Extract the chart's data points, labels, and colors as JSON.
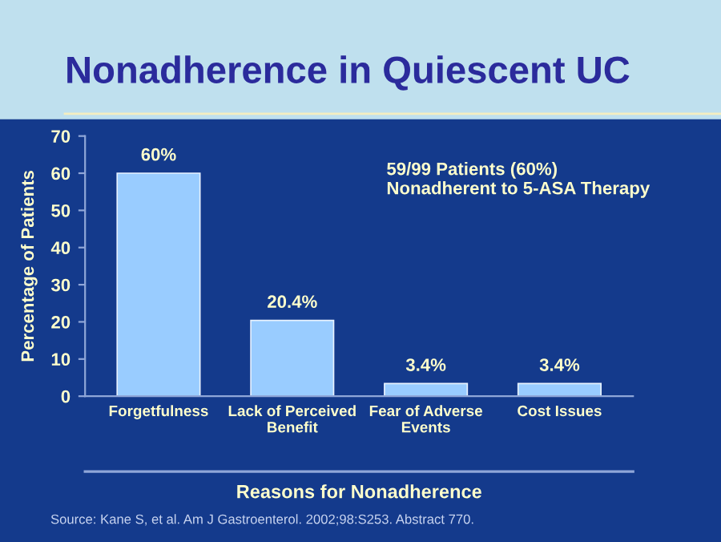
{
  "chart_data": {
    "type": "bar",
    "title": "Nonadherence in Quiescent UC",
    "categories": [
      "Forgetfulness",
      "Lack of Perceived\nBenefit",
      "Fear of Adverse\nEvents",
      "Cost Issues"
    ],
    "values": [
      60,
      20.4,
      3.4,
      3.4
    ],
    "value_labels": [
      "60%",
      "20.4%",
      "3.4%",
      "3.4%"
    ],
    "color": "#99ccff",
    "xlabel": "Reasons for Nonadherence",
    "ylabel": "Percentage of Patients",
    "ylim": [
      0,
      70
    ],
    "yticks": [
      0,
      10,
      20,
      30,
      40,
      50,
      60,
      70
    ],
    "grid": false,
    "annotations": [
      "59/99 Patients (60%)\nNonadherent to 5-ASA Therapy",
      "Source: Kane S, et al. Am J Gastroenterol. 2002;98:S253. Abstract 770."
    ]
  }
}
